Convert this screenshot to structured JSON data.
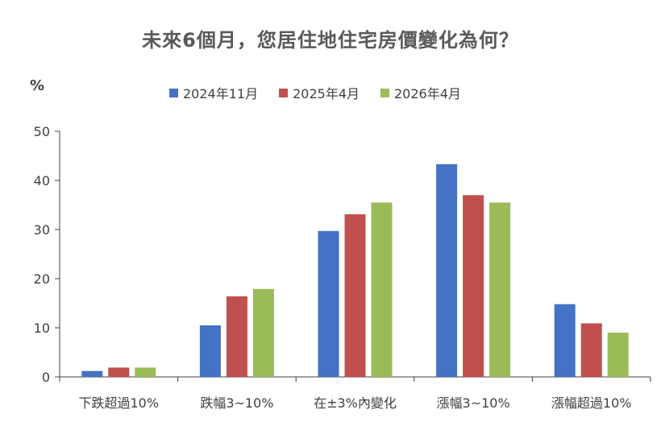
{
  "chart_data": {
    "type": "bar",
    "title": "未來6個月，您居住地住宅房價變化為何？",
    "ylabel": "%",
    "xlabel": "",
    "ylim": [
      0,
      50
    ],
    "yticks": [
      0,
      10,
      20,
      30,
      40,
      50
    ],
    "grid": false,
    "legend_position": "top",
    "categories": [
      "下跌超過10%",
      "跌幅3~10%",
      "在±3%內變化",
      "漲幅3~10%",
      "漲幅超過10%"
    ],
    "series": [
      {
        "name": "2024年11月",
        "color": "#4472C4",
        "values": [
          1.2,
          10.5,
          29.7,
          43.3,
          14.8
        ]
      },
      {
        "name": "2025年4月",
        "color": "#C0504D",
        "values": [
          1.9,
          16.4,
          33.1,
          37.0,
          10.9
        ]
      },
      {
        "name": "2026年4月",
        "color": "#9BBB59",
        "values": [
          1.9,
          17.9,
          35.5,
          35.5,
          9.0
        ]
      }
    ]
  }
}
